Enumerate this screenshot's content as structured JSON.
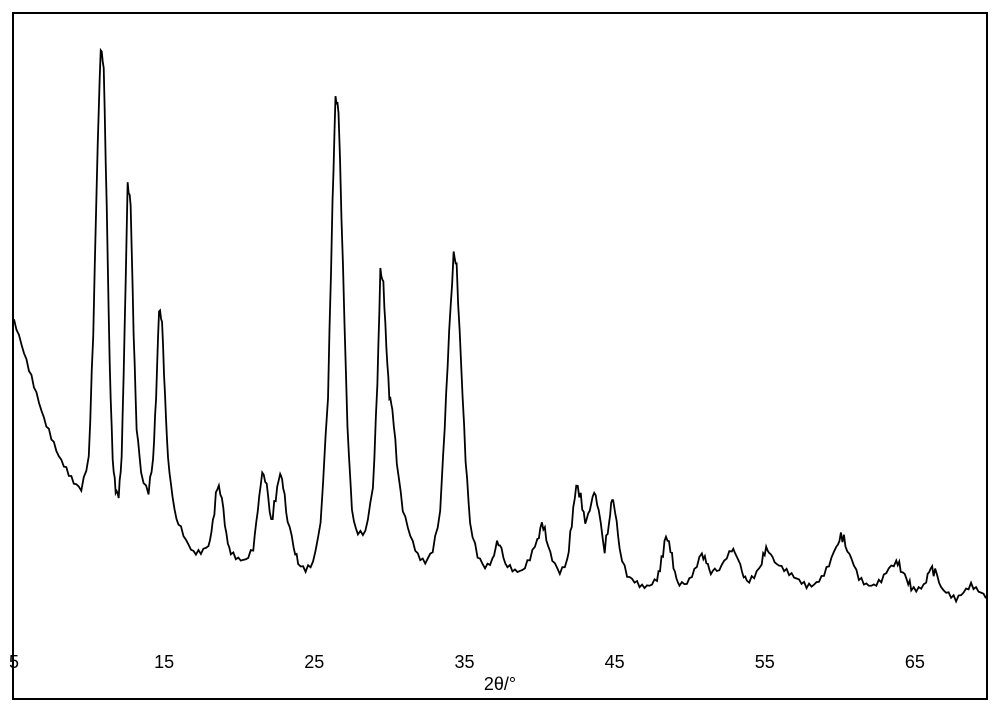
{
  "chart": {
    "type": "line",
    "xlabel": "2θ/°",
    "label_fontsize": 18,
    "tick_fontsize": 18,
    "xlim": [
      5,
      70
    ],
    "ylim": [
      0,
      100
    ],
    "xticks": [
      5,
      15,
      25,
      35,
      45,
      55,
      65
    ],
    "xtick_labels": [
      "5",
      "15",
      "25",
      "35",
      "45",
      "55",
      "65"
    ],
    "background_color": "#ffffff",
    "line_color": "#000000",
    "line_width": 1.8,
    "border_color": "#000000",
    "border_width": 2,
    "data": [
      [
        5,
        52
      ],
      [
        5.5,
        48
      ],
      [
        6,
        44
      ],
      [
        6.5,
        40
      ],
      [
        7,
        36
      ],
      [
        7.5,
        33
      ],
      [
        8,
        30
      ],
      [
        8.5,
        28
      ],
      [
        9,
        26
      ],
      [
        9.5,
        25
      ],
      [
        10,
        30
      ],
      [
        10.3,
        50
      ],
      [
        10.6,
        80
      ],
      [
        10.8,
        95
      ],
      [
        11,
        92
      ],
      [
        11.2,
        70
      ],
      [
        11.4,
        45
      ],
      [
        11.6,
        30
      ],
      [
        11.8,
        25
      ],
      [
        12,
        24
      ],
      [
        12.2,
        30
      ],
      [
        12.4,
        50
      ],
      [
        12.6,
        73
      ],
      [
        12.8,
        70
      ],
      [
        13,
        50
      ],
      [
        13.2,
        35
      ],
      [
        13.5,
        28
      ],
      [
        14,
        25
      ],
      [
        14.3,
        30
      ],
      [
        14.5,
        40
      ],
      [
        14.7,
        54
      ],
      [
        14.9,
        52
      ],
      [
        15.1,
        40
      ],
      [
        15.3,
        30
      ],
      [
        15.6,
        24
      ],
      [
        16,
        20
      ],
      [
        16.5,
        17
      ],
      [
        17,
        15
      ],
      [
        17.5,
        15
      ],
      [
        18,
        16
      ],
      [
        18.3,
        20
      ],
      [
        18.6,
        26
      ],
      [
        18.9,
        24
      ],
      [
        19.2,
        18
      ],
      [
        19.5,
        15
      ],
      [
        20,
        14
      ],
      [
        20.5,
        14
      ],
      [
        21,
        16
      ],
      [
        21.3,
        22
      ],
      [
        21.6,
        28
      ],
      [
        21.9,
        26
      ],
      [
        22.2,
        20
      ],
      [
        22.5,
        24
      ],
      [
        22.8,
        28
      ],
      [
        23,
        26
      ],
      [
        23.3,
        20
      ],
      [
        23.7,
        16
      ],
      [
        24,
        14
      ],
      [
        24.5,
        13
      ],
      [
        25,
        14
      ],
      [
        25.5,
        20
      ],
      [
        26,
        40
      ],
      [
        26.3,
        70
      ],
      [
        26.5,
        87
      ],
      [
        26.7,
        85
      ],
      [
        27,
        60
      ],
      [
        27.3,
        35
      ],
      [
        27.6,
        22
      ],
      [
        28,
        18
      ],
      [
        28.5,
        18
      ],
      [
        29,
        25
      ],
      [
        29.3,
        42
      ],
      [
        29.5,
        60
      ],
      [
        29.7,
        58
      ],
      [
        29.9,
        48
      ],
      [
        30.1,
        40
      ],
      [
        30.3,
        38
      ],
      [
        30.6,
        30
      ],
      [
        31,
        22
      ],
      [
        31.5,
        18
      ],
      [
        32,
        15
      ],
      [
        32.5,
        14
      ],
      [
        33,
        16
      ],
      [
        33.5,
        22
      ],
      [
        33.8,
        35
      ],
      [
        34.1,
        50
      ],
      [
        34.4,
        62
      ],
      [
        34.6,
        60
      ],
      [
        34.9,
        45
      ],
      [
        35.2,
        30
      ],
      [
        35.5,
        20
      ],
      [
        36,
        15
      ],
      [
        36.5,
        13
      ],
      [
        37,
        14
      ],
      [
        37.3,
        17
      ],
      [
        37.6,
        16
      ],
      [
        38,
        13
      ],
      [
        38.5,
        12
      ],
      [
        39,
        12
      ],
      [
        39.5,
        14
      ],
      [
        40,
        17
      ],
      [
        40.3,
        20
      ],
      [
        40.6,
        18
      ],
      [
        41,
        14
      ],
      [
        41.5,
        12
      ],
      [
        42,
        14
      ],
      [
        42.3,
        20
      ],
      [
        42.6,
        26
      ],
      [
        42.9,
        24
      ],
      [
        43.2,
        20
      ],
      [
        43.5,
        22
      ],
      [
        43.8,
        25
      ],
      [
        44.1,
        22
      ],
      [
        44.5,
        16
      ],
      [
        44.8,
        20
      ],
      [
        45,
        24
      ],
      [
        45.2,
        22
      ],
      [
        45.5,
        16
      ],
      [
        46,
        12
      ],
      [
        46.5,
        11
      ],
      [
        47,
        10
      ],
      [
        47.5,
        10
      ],
      [
        48,
        11
      ],
      [
        48.3,
        14
      ],
      [
        48.6,
        18
      ],
      [
        48.9,
        16
      ],
      [
        49.2,
        12
      ],
      [
        49.5,
        10
      ],
      [
        50,
        10
      ],
      [
        50.5,
        12
      ],
      [
        51,
        15
      ],
      [
        51.3,
        14
      ],
      [
        51.6,
        12
      ],
      [
        52,
        12
      ],
      [
        52.5,
        14
      ],
      [
        53,
        16
      ],
      [
        53.3,
        15
      ],
      [
        53.7,
        12
      ],
      [
        54,
        11
      ],
      [
        54.5,
        12
      ],
      [
        55,
        14
      ],
      [
        55.3,
        16
      ],
      [
        55.6,
        15
      ],
      [
        56,
        14
      ],
      [
        56.5,
        13
      ],
      [
        57,
        12
      ],
      [
        57.5,
        11
      ],
      [
        58,
        10
      ],
      [
        58.5,
        10
      ],
      [
        59,
        11
      ],
      [
        59.5,
        13
      ],
      [
        60,
        16
      ],
      [
        60.3,
        18
      ],
      [
        60.6,
        17
      ],
      [
        61,
        14
      ],
      [
        61.5,
        11
      ],
      [
        62,
        10
      ],
      [
        62.5,
        10
      ],
      [
        63,
        11
      ],
      [
        63.5,
        13
      ],
      [
        64,
        14
      ],
      [
        64.3,
        13
      ],
      [
        64.7,
        11
      ],
      [
        65,
        10
      ],
      [
        65.5,
        10
      ],
      [
        66,
        11
      ],
      [
        66.3,
        13
      ],
      [
        66.6,
        12
      ],
      [
        67,
        10
      ],
      [
        67.5,
        9
      ],
      [
        68,
        8
      ],
      [
        68.5,
        9
      ],
      [
        69,
        10
      ],
      [
        69.5,
        9
      ],
      [
        70,
        8
      ]
    ]
  }
}
